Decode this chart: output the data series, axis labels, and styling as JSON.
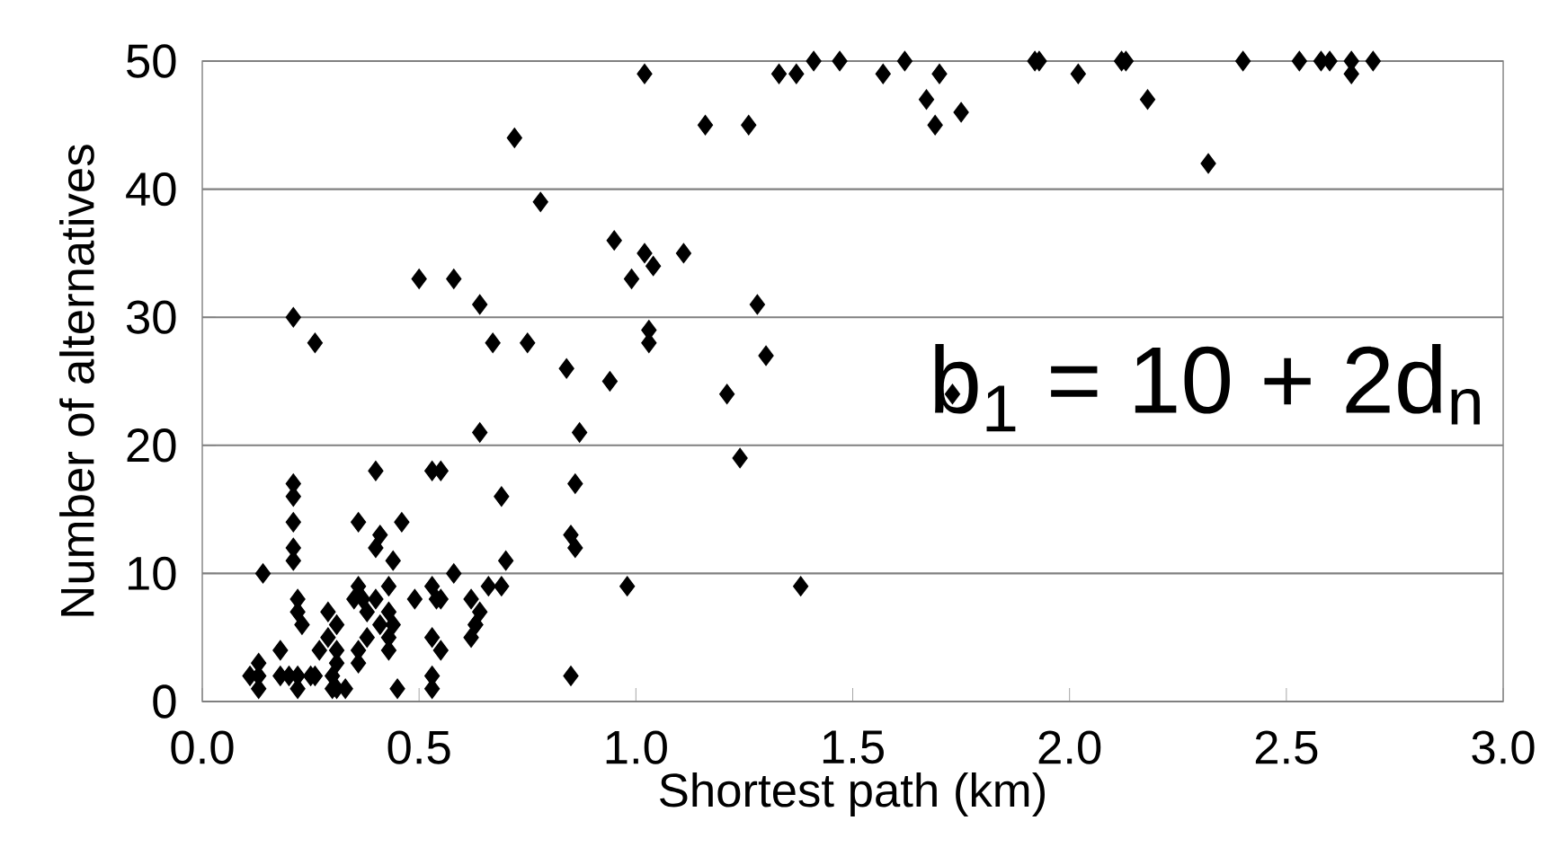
{
  "chart_data": {
    "type": "scatter",
    "xlabel": "Shortest path (km)",
    "ylabel": "Number of alternatives",
    "annotations": [
      "b$_{1}$ = 10 + 2d$_{n}$"
    ],
    "x": [
      0.11,
      0.13,
      0.13,
      0.13,
      0.14,
      0.18,
      0.18,
      0.2,
      0.22,
      0.21,
      0.21,
      0.21,
      0.21,
      0.21,
      0.22,
      0.22,
      0.22,
      0.23,
      0.21,
      0.26,
      0.25,
      0.26,
      0.27,
      0.29,
      0.29,
      0.3,
      0.31,
      0.31,
      0.31,
      0.3,
      0.31,
      0.33,
      0.36,
      0.35,
      0.36,
      0.37,
      0.36,
      0.36,
      0.38,
      0.38,
      0.4,
      0.4,
      0.4,
      0.41,
      0.41,
      0.43,
      0.43,
      0.43,
      0.43,
      0.44,
      0.44,
      0.45,
      0.46,
      0.5,
      0.49,
      0.53,
      0.55,
      0.53,
      0.54,
      0.55,
      0.53,
      0.53,
      0.53,
      0.55,
      0.58,
      0.58,
      0.62,
      0.63,
      0.62,
      0.63,
      0.64,
      0.64,
      0.64,
      0.66,
      0.69,
      0.67,
      0.69,
      0.7,
      0.72,
      0.75,
      0.78,
      0.84,
      0.85,
      0.85,
      0.86,
      0.86,
      0.87,
      0.94,
      0.95,
      0.98,
      0.99,
      1.02,
      1.02,
      1.03,
      1.03,
      1.04,
      1.11,
      1.16,
      1.21,
      1.24,
      1.26,
      1.28,
      1.3,
      1.33,
      1.37,
      1.38,
      1.41,
      1.47,
      1.57,
      1.62,
      1.67,
      1.69,
      1.7,
      1.73,
      1.75,
      1.92,
      1.93,
      2.02,
      2.12,
      2.13,
      2.18,
      2.32,
      2.4,
      2.53,
      2.58,
      2.6,
      2.65,
      2.65,
      2.7
    ],
    "values": [
      2,
      3,
      2,
      1,
      10,
      4,
      2,
      2,
      2,
      17,
      16,
      14,
      12,
      11,
      1,
      8,
      7,
      6,
      30,
      28,
      2,
      2,
      4,
      5,
      7,
      2,
      4,
      3,
      6,
      1,
      1,
      1,
      14,
      8,
      9,
      8,
      4,
      3,
      5,
      7,
      8,
      12,
      18,
      13,
      6,
      7,
      5,
      9,
      4,
      11,
      6,
      1,
      14,
      33,
      8,
      18,
      18,
      9,
      8,
      8,
      5,
      2,
      1,
      4,
      10,
      33,
      8,
      6,
      5,
      6,
      7,
      21,
      31,
      9,
      9,
      28,
      16,
      11,
      44,
      28,
      39,
      26,
      2,
      13,
      12,
      17,
      21,
      25,
      36,
      9,
      33,
      35,
      49,
      29,
      28,
      34,
      35,
      45,
      24,
      19,
      45,
      31,
      27,
      49,
      49,
      9,
      50,
      50,
      49,
      50,
      47,
      45,
      49,
      24,
      46,
      50,
      50,
      49,
      50,
      50,
      47,
      42,
      50,
      50,
      50,
      50,
      50,
      49,
      50
    ],
    "color": "#000000",
    "marker": "diamond",
    "xlim": [
      0,
      3
    ],
    "ylim": [
      0,
      50
    ],
    "xticks": [
      {
        "value": 0,
        "label": "0.0"
      },
      {
        "value": 0.5,
        "label": "0.5"
      },
      {
        "value": 1,
        "label": "1.0"
      },
      {
        "value": 1.5,
        "label": "1.5"
      },
      {
        "value": 2,
        "label": "2.0"
      },
      {
        "value": 2.5,
        "label": "2.5"
      },
      {
        "value": 3,
        "label": "3.0"
      }
    ],
    "yticks": [
      0,
      10,
      20,
      30,
      40,
      50
    ],
    "grid": "y"
  }
}
